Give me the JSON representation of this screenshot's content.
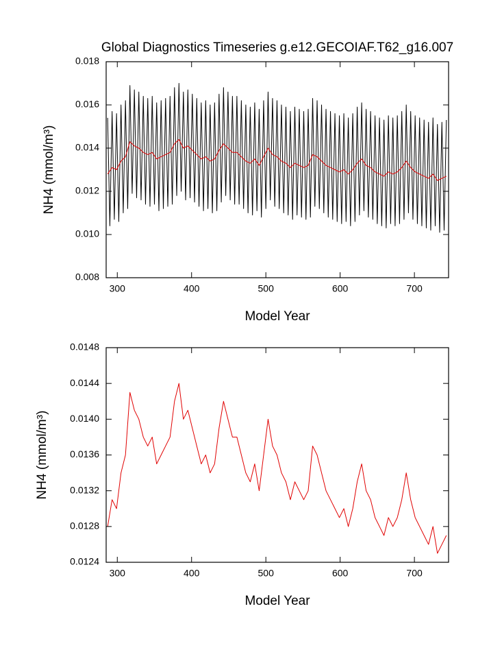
{
  "chart_data": [
    {
      "type": "line",
      "title": "Global Diagnostics Timeseries g.e12.GECOIAF.T62_g16.007",
      "x_label": "Model Year",
      "y_label": "NH4 (mmol/m³)",
      "xlim": [
        285,
        746
      ],
      "xticks": [
        300,
        400,
        500,
        600,
        700
      ],
      "ylim": [
        0.008,
        0.018
      ],
      "yticks": [
        0.008,
        {
          "value": 0.01,
          "label": "0.010"
        },
        0.012,
        0.014,
        0.016,
        0.018
      ],
      "series": [
        {
          "color": "#000000",
          "x": [
            287,
            290,
            293,
            296,
            299,
            302,
            305,
            308,
            311,
            314,
            317,
            320,
            323,
            326,
            329,
            332,
            335,
            338,
            341,
            344,
            347,
            350,
            353,
            356,
            359,
            362,
            365,
            368,
            371,
            374,
            377,
            380,
            383,
            386,
            389,
            392,
            395,
            398,
            401,
            404,
            407,
            410,
            413,
            416,
            419,
            422,
            425,
            428,
            431,
            434,
            437,
            440,
            443,
            446,
            449,
            452,
            455,
            458,
            461,
            464,
            467,
            470,
            473,
            476,
            479,
            482,
            485,
            488,
            491,
            494,
            497,
            500,
            503,
            506,
            509,
            512,
            515,
            518,
            521,
            524,
            527,
            530,
            533,
            536,
            539,
            542,
            545,
            548,
            551,
            554,
            557,
            560,
            563,
            566,
            569,
            572,
            575,
            578,
            581,
            584,
            587,
            590,
            593,
            596,
            599,
            602,
            605,
            608,
            611,
            614,
            617,
            620,
            623,
            626,
            629,
            632,
            635,
            638,
            641,
            644,
            647,
            650,
            653,
            656,
            659,
            662,
            665,
            668,
            671,
            674,
            677,
            680,
            683,
            686,
            689,
            692,
            695,
            698,
            701,
            704,
            707,
            710,
            713,
            716,
            719,
            722,
            725,
            728,
            731,
            734,
            737,
            740,
            743
          ],
          "values": [
            0.0154,
            0.0104,
            0.0157,
            0.0107,
            0.0156,
            0.0106,
            0.016,
            0.011,
            0.0162,
            0.0112,
            0.0169,
            0.0119,
            0.0167,
            0.0117,
            0.0166,
            0.0116,
            0.0164,
            0.0114,
            0.0163,
            0.0113,
            0.0164,
            0.0114,
            0.0161,
            0.0111,
            0.0162,
            0.0112,
            0.0163,
            0.0113,
            0.0164,
            0.0114,
            0.0168,
            0.0118,
            0.017,
            0.012,
            0.0166,
            0.0116,
            0.0167,
            0.0117,
            0.0165,
            0.0115,
            0.0163,
            0.0113,
            0.0161,
            0.0111,
            0.0162,
            0.0112,
            0.016,
            0.011,
            0.0161,
            0.0111,
            0.0165,
            0.0115,
            0.0168,
            0.0118,
            0.0166,
            0.0116,
            0.0164,
            0.0114,
            0.0164,
            0.0114,
            0.0162,
            0.0112,
            0.016,
            0.011,
            0.0159,
            0.0109,
            0.0161,
            0.0111,
            0.0158,
            0.0108,
            0.0162,
            0.0112,
            0.0166,
            0.0116,
            0.0163,
            0.0113,
            0.0162,
            0.0112,
            0.016,
            0.011,
            0.0159,
            0.0109,
            0.0157,
            0.0107,
            0.0159,
            0.0109,
            0.0158,
            0.0108,
            0.0157,
            0.0107,
            0.0158,
            0.0108,
            0.0163,
            0.0113,
            0.0162,
            0.0112,
            0.016,
            0.011,
            0.0158,
            0.0108,
            0.0157,
            0.0107,
            0.0156,
            0.0106,
            0.0155,
            0.0105,
            0.0156,
            0.0106,
            0.0154,
            0.0104,
            0.0156,
            0.0106,
            0.0159,
            0.0109,
            0.0161,
            0.0111,
            0.0158,
            0.0108,
            0.0157,
            0.0107,
            0.0155,
            0.0105,
            0.0154,
            0.0104,
            0.0153,
            0.0103,
            0.0155,
            0.0105,
            0.0154,
            0.0104,
            0.0155,
            0.0105,
            0.0157,
            0.0107,
            0.016,
            0.011,
            0.0157,
            0.0107,
            0.0155,
            0.0105,
            0.0154,
            0.0104,
            0.0153,
            0.0103,
            0.0152,
            0.0102,
            0.0154,
            0.0104,
            0.0151,
            0.0101,
            0.0152,
            0.0102,
            0.0153
          ]
        },
        {
          "color": "#e00000",
          "x": [
            287,
            293,
            299,
            305,
            311,
            317,
            323,
            329,
            335,
            341,
            347,
            353,
            359,
            365,
            371,
            377,
            383,
            389,
            395,
            401,
            407,
            413,
            419,
            425,
            431,
            437,
            443,
            449,
            455,
            461,
            467,
            473,
            479,
            485,
            491,
            497,
            503,
            509,
            515,
            521,
            527,
            533,
            539,
            545,
            551,
            557,
            563,
            569,
            575,
            581,
            587,
            593,
            599,
            605,
            611,
            617,
            623,
            629,
            635,
            641,
            647,
            653,
            659,
            665,
            671,
            677,
            683,
            689,
            695,
            701,
            707,
            713,
            719,
            725,
            731,
            737,
            743
          ],
          "values": [
            0.0128,
            0.0131,
            0.013,
            0.0134,
            0.0136,
            0.0143,
            0.0141,
            0.014,
            0.0138,
            0.0137,
            0.0138,
            0.0135,
            0.0136,
            0.0137,
            0.0138,
            0.0142,
            0.0144,
            0.014,
            0.0141,
            0.0139,
            0.0137,
            0.0135,
            0.0136,
            0.0134,
            0.0135,
            0.0139,
            0.0142,
            0.014,
            0.0138,
            0.0138,
            0.0136,
            0.0134,
            0.0133,
            0.0135,
            0.0132,
            0.0136,
            0.014,
            0.0137,
            0.0136,
            0.0134,
            0.0133,
            0.0131,
            0.0133,
            0.0132,
            0.0131,
            0.0132,
            0.0137,
            0.0136,
            0.0134,
            0.0132,
            0.0131,
            0.013,
            0.0129,
            0.013,
            0.0128,
            0.013,
            0.0133,
            0.0135,
            0.0132,
            0.0131,
            0.0129,
            0.0128,
            0.0127,
            0.0129,
            0.0128,
            0.0129,
            0.0131,
            0.0134,
            0.0131,
            0.0129,
            0.0128,
            0.0127,
            0.0126,
            0.0128,
            0.0125,
            0.0126,
            0.0127
          ]
        }
      ]
    },
    {
      "type": "line",
      "x_label": "Model Year",
      "y_label": "NH4 (mmol/m³)",
      "xlim": [
        285,
        746
      ],
      "xticks": [
        300,
        400,
        500,
        600,
        700
      ],
      "ylim": [
        0.0124,
        0.0148
      ],
      "yticks": [
        0.0124,
        0.0128,
        0.0132,
        0.0136,
        {
          "value": 0.014,
          "label": "0.0140"
        },
        0.0144,
        0.0148
      ],
      "series": [
        {
          "color": "#e00000",
          "x": [
            287,
            293,
            299,
            305,
            311,
            317,
            323,
            329,
            335,
            341,
            347,
            353,
            359,
            365,
            371,
            377,
            383,
            389,
            395,
            401,
            407,
            413,
            419,
            425,
            431,
            437,
            443,
            449,
            455,
            461,
            467,
            473,
            479,
            485,
            491,
            497,
            503,
            509,
            515,
            521,
            527,
            533,
            539,
            545,
            551,
            557,
            563,
            569,
            575,
            581,
            587,
            593,
            599,
            605,
            611,
            617,
            623,
            629,
            635,
            641,
            647,
            653,
            659,
            665,
            671,
            677,
            683,
            689,
            695,
            701,
            707,
            713,
            719,
            725,
            731,
            737,
            743
          ],
          "values": [
            0.0128,
            0.0131,
            0.013,
            0.0134,
            0.0136,
            0.0143,
            0.0141,
            0.014,
            0.0138,
            0.0137,
            0.0138,
            0.0135,
            0.0136,
            0.0137,
            0.0138,
            0.0142,
            0.0144,
            0.014,
            0.0141,
            0.0139,
            0.0137,
            0.0135,
            0.0136,
            0.0134,
            0.0135,
            0.0139,
            0.0142,
            0.014,
            0.0138,
            0.0138,
            0.0136,
            0.0134,
            0.0133,
            0.0135,
            0.0132,
            0.0136,
            0.014,
            0.0137,
            0.0136,
            0.0134,
            0.0133,
            0.0131,
            0.0133,
            0.0132,
            0.0131,
            0.0132,
            0.0137,
            0.0136,
            0.0134,
            0.0132,
            0.0131,
            0.013,
            0.0129,
            0.013,
            0.0128,
            0.013,
            0.0133,
            0.0135,
            0.0132,
            0.0131,
            0.0129,
            0.0128,
            0.0127,
            0.0129,
            0.0128,
            0.0129,
            0.0131,
            0.0134,
            0.0131,
            0.0129,
            0.0128,
            0.0127,
            0.0126,
            0.0128,
            0.0125,
            0.0126,
            0.0127
          ]
        }
      ]
    }
  ]
}
